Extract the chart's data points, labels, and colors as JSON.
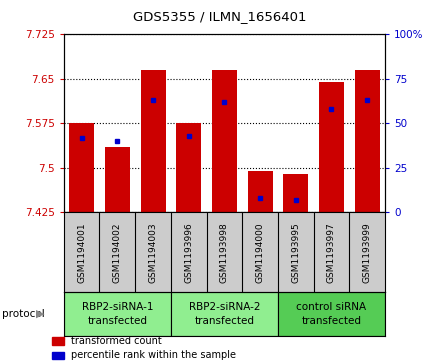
{
  "title": "GDS5355 / ILMN_1656401",
  "samples": [
    "GSM1194001",
    "GSM1194002",
    "GSM1194003",
    "GSM1193996",
    "GSM1193998",
    "GSM1194000",
    "GSM1193995",
    "GSM1193997",
    "GSM1193999"
  ],
  "bar_values": [
    7.575,
    7.535,
    7.665,
    7.575,
    7.665,
    7.495,
    7.49,
    7.645,
    7.665
  ],
  "percentile_values": [
    42,
    40,
    63,
    43,
    62,
    8,
    7,
    58,
    63
  ],
  "ymin": 7.425,
  "ymax": 7.725,
  "yticks": [
    7.425,
    7.5,
    7.575,
    7.65,
    7.725
  ],
  "y2ticks": [
    0,
    25,
    50,
    75,
    100
  ],
  "bar_color": "#cc0000",
  "percentile_color": "#0000cc",
  "groups": [
    {
      "label": "RBP2-siRNA-1\ntransfected",
      "start": 0,
      "end": 3,
      "color": "#90ee90"
    },
    {
      "label": "RBP2-siRNA-2\ntransfected",
      "start": 3,
      "end": 6,
      "color": "#90ee90"
    },
    {
      "label": "control siRNA\ntransfected",
      "start": 6,
      "end": 9,
      "color": "#55cc55"
    }
  ],
  "protocol_label": "protocol",
  "legend_items": [
    {
      "color": "#cc0000",
      "label": "transformed count"
    },
    {
      "color": "#0000cc",
      "label": "percentile rank within the sample"
    }
  ],
  "bg_color": "#cccccc",
  "plot_bg": "#ffffff",
  "bar_width": 0.7
}
